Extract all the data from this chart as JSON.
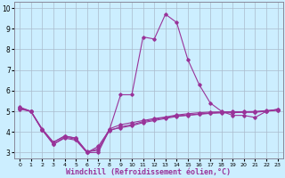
{
  "xlabel": "Windchill (Refroidissement éolien,°C)",
  "background_color": "#cceeff",
  "grid_color": "#aabbcc",
  "line_color": "#993399",
  "xlim": [
    -0.5,
    23.5
  ],
  "ylim": [
    2.7,
    10.3
  ],
  "yticks": [
    3,
    4,
    5,
    6,
    7,
    8,
    9,
    10
  ],
  "xticks": [
    0,
    1,
    2,
    3,
    4,
    5,
    6,
    7,
    8,
    9,
    10,
    11,
    12,
    13,
    14,
    15,
    16,
    17,
    18,
    19,
    20,
    21,
    22,
    23
  ],
  "series1_x": [
    0,
    1,
    2,
    3,
    4,
    5,
    6,
    7,
    8,
    9,
    10,
    11,
    12,
    13,
    14,
    15,
    16,
    17,
    18,
    19,
    20,
    21,
    22,
    23
  ],
  "series1_y": [
    5.2,
    5.0,
    4.1,
    3.5,
    3.8,
    3.7,
    3.0,
    3.0,
    4.1,
    5.8,
    5.8,
    8.6,
    8.5,
    9.7,
    9.3,
    7.5,
    6.3,
    5.4,
    5.0,
    4.8,
    4.8,
    4.7,
    5.0,
    5.1
  ],
  "series2_x": [
    0,
    1,
    2,
    3,
    4,
    5,
    6,
    7,
    8,
    9,
    10,
    11,
    12,
    13,
    14,
    15,
    16,
    17,
    18,
    19,
    20,
    21,
    22,
    23
  ],
  "series2_y": [
    5.1,
    5.0,
    4.1,
    3.4,
    3.7,
    3.6,
    3.0,
    3.3,
    4.1,
    4.2,
    4.3,
    4.45,
    4.55,
    4.65,
    4.75,
    4.8,
    4.85,
    4.9,
    4.92,
    4.93,
    4.95,
    4.95,
    5.0,
    5.05
  ],
  "series3_x": [
    0,
    1,
    2,
    3,
    4,
    5,
    6,
    7,
    8,
    9,
    10,
    11,
    12,
    13,
    14,
    15,
    16,
    17,
    18,
    19,
    20,
    21,
    22,
    23
  ],
  "series3_y": [
    5.15,
    4.98,
    4.1,
    3.4,
    3.75,
    3.65,
    3.0,
    3.2,
    4.05,
    4.25,
    4.35,
    4.5,
    4.6,
    4.7,
    4.78,
    4.82,
    4.87,
    4.92,
    4.95,
    4.96,
    4.97,
    4.97,
    5.01,
    5.06
  ],
  "series4_x": [
    0,
    1,
    2,
    3,
    4,
    5,
    6,
    7,
    8,
    9,
    10,
    11,
    12,
    13,
    14,
    15,
    16,
    17,
    18,
    19,
    20,
    21,
    22,
    23
  ],
  "series4_y": [
    5.18,
    5.0,
    4.15,
    3.5,
    3.8,
    3.7,
    3.05,
    3.1,
    4.15,
    4.35,
    4.45,
    4.55,
    4.65,
    4.72,
    4.82,
    4.88,
    4.93,
    4.96,
    4.97,
    4.98,
    4.98,
    4.99,
    5.03,
    5.08
  ]
}
